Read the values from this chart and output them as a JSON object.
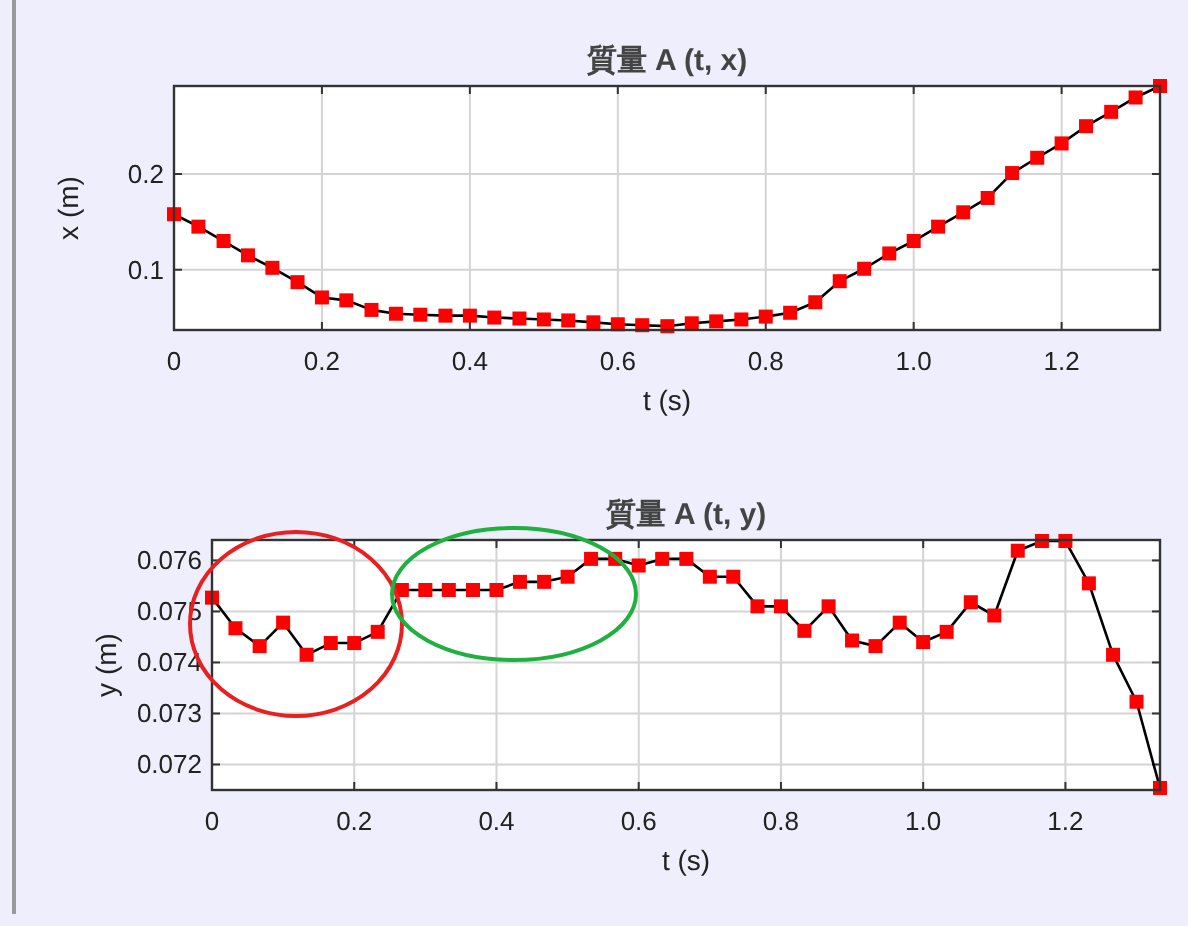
{
  "chart_data": [
    {
      "type": "line",
      "title": "質量 A (t, x)",
      "xlabel": "t (s)",
      "ylabel": "x (m)",
      "x": [
        0,
        0.033,
        0.067,
        0.1,
        0.133,
        0.167,
        0.2,
        0.233,
        0.267,
        0.3,
        0.333,
        0.367,
        0.4,
        0.433,
        0.467,
        0.5,
        0.533,
        0.567,
        0.6,
        0.633,
        0.667,
        0.7,
        0.733,
        0.767,
        0.8,
        0.833,
        0.867,
        0.9,
        0.933,
        0.967,
        1.0,
        1.033,
        1.067,
        1.1,
        1.133,
        1.167,
        1.2,
        1.233,
        1.267,
        1.3,
        1.333
      ],
      "series": [
        {
          "color": "#ff0000",
          "values": [
            0.158,
            0.145,
            0.13,
            0.115,
            0.102,
            0.087,
            0.071,
            0.068,
            0.058,
            0.054,
            0.053,
            0.052,
            0.052,
            0.05,
            0.049,
            0.048,
            0.047,
            0.045,
            0.043,
            0.042,
            0.041,
            0.044,
            0.046,
            0.048,
            0.051,
            0.055,
            0.066,
            0.088,
            0.101,
            0.117,
            0.13,
            0.145,
            0.16,
            0.175,
            0.201,
            0.217,
            0.232,
            0.25,
            0.265,
            0.28,
            0.292
          ]
        }
      ],
      "xlim": [
        0,
        1.333
      ],
      "xticks": [
        0,
        0.2,
        0.4,
        0.6,
        0.8,
        {
          "value": 1,
          "label": "1.0"
        },
        1.2
      ],
      "ylim": [
        0.037,
        0.292
      ],
      "yticks": [
        0.1,
        0.2
      ],
      "grid": true,
      "marker": "square",
      "line_style": "solid"
    },
    {
      "type": "line",
      "title": "質量 A (t, y)",
      "xlabel": "t (s)",
      "ylabel": "y (m)",
      "x": [
        0,
        0.033,
        0.067,
        0.1,
        0.133,
        0.167,
        0.2,
        0.233,
        0.267,
        0.3,
        0.333,
        0.367,
        0.4,
        0.433,
        0.467,
        0.5,
        0.533,
        0.567,
        0.6,
        0.633,
        0.667,
        0.7,
        0.733,
        0.767,
        0.8,
        0.833,
        0.867,
        0.9,
        0.933,
        0.967,
        1.0,
        1.033,
        1.067,
        1.1,
        1.133,
        1.167,
        1.2,
        1.233,
        1.267,
        1.3,
        1.333
      ],
      "series": [
        {
          "color": "#ff0000",
          "values": [
            0.07527,
            0.07467,
            0.07432,
            0.07478,
            0.07415,
            0.07438,
            0.07438,
            0.0746,
            0.07542,
            0.07542,
            0.07542,
            0.07542,
            0.07542,
            0.07558,
            0.07558,
            0.07568,
            0.07603,
            0.07603,
            0.0759,
            0.07603,
            0.07603,
            0.07568,
            0.07568,
            0.0751,
            0.0751,
            0.07462,
            0.0751,
            0.07443,
            0.07432,
            0.07478,
            0.0744,
            0.0746,
            0.07518,
            0.07492,
            0.07619,
            0.07638,
            0.07638,
            0.07555,
            0.07415,
            0.07323,
            0.07154
          ]
        }
      ],
      "xlim": [
        0,
        1.333
      ],
      "xticks": [
        0,
        0.2,
        0.4,
        0.6,
        0.8,
        {
          "value": 1,
          "label": "1.0"
        },
        1.2
      ],
      "ylim": [
        0.0715,
        0.0764
      ],
      "yticks": [
        0.072,
        0.073,
        0.074,
        0.075,
        0.076
      ],
      "grid": true,
      "marker": "square",
      "line_style": "solid"
    }
  ]
}
